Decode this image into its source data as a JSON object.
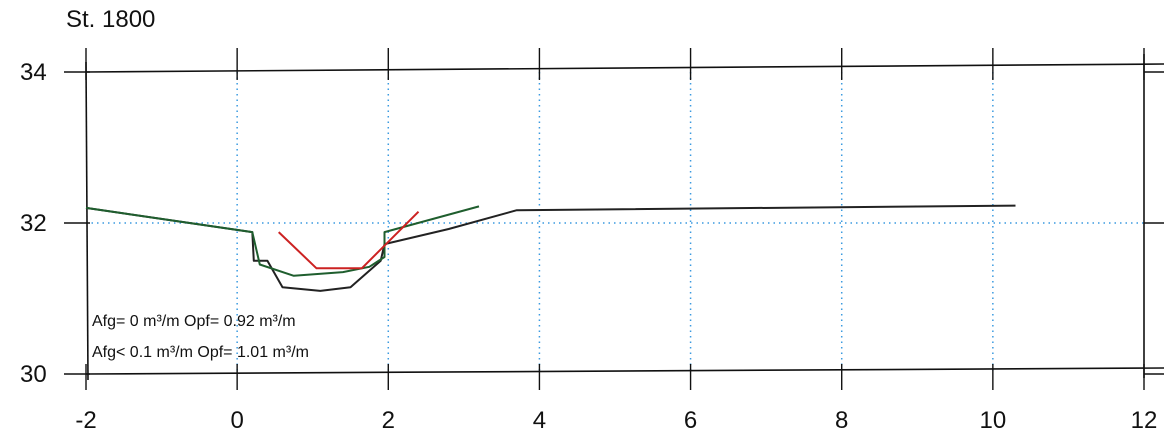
{
  "chart_data": {
    "type": "line",
    "title": "St. 1800",
    "xlim": [
      -2,
      12
    ],
    "ylim": [
      30,
      34
    ],
    "x_ticks": [
      "-2",
      "0",
      "2",
      "4",
      "6",
      "8",
      "10",
      "12"
    ],
    "y_ticks": [
      "30",
      "32",
      "34"
    ],
    "grid": "dotted",
    "grid_color": "#3a9ae0",
    "reference_line_y": 32,
    "annotations": [
      "Afg= 0 m³/m  Opf= 0.92 m³/m",
      "Afg< 0.1 m³/m  Opf= 1.01 m³/m"
    ],
    "series": [
      {
        "color": "#222222",
        "points": [
          [
            -2,
            32.2
          ],
          [
            0.2,
            31.88
          ],
          [
            0.22,
            31.5
          ],
          [
            0.4,
            31.5
          ],
          [
            0.6,
            31.15
          ],
          [
            1.1,
            31.1
          ],
          [
            1.5,
            31.15
          ],
          [
            1.9,
            31.5
          ],
          [
            1.95,
            31.72
          ],
          [
            2.8,
            31.92
          ],
          [
            3.7,
            32.17
          ],
          [
            10.3,
            32.23
          ]
        ]
      },
      {
        "color": "#1f5e2e",
        "points": [
          [
            -2,
            32.2
          ],
          [
            0.2,
            31.88
          ],
          [
            0.3,
            31.45
          ],
          [
            0.75,
            31.3
          ],
          [
            1.4,
            31.35
          ],
          [
            1.75,
            31.42
          ],
          [
            1.95,
            31.55
          ],
          [
            1.95,
            31.88
          ],
          [
            3.2,
            32.22
          ]
        ]
      },
      {
        "color": "#cc2222",
        "points": [
          [
            0.55,
            31.88
          ],
          [
            1.05,
            31.4
          ],
          [
            1.65,
            31.4
          ],
          [
            2.4,
            32.15
          ]
        ]
      }
    ]
  }
}
